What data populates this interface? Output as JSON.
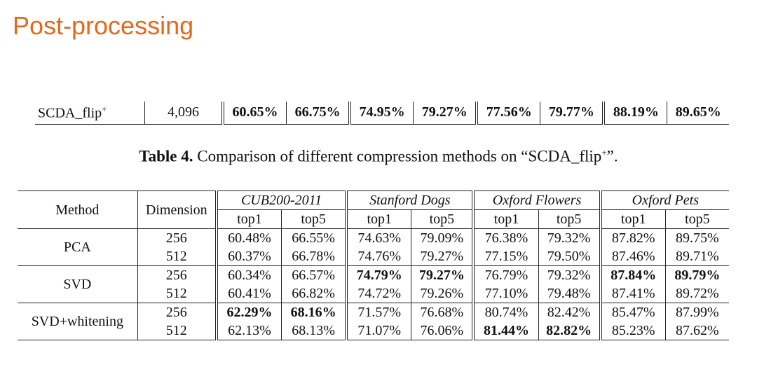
{
  "title": "Post-processing",
  "top_row": {
    "method": "SCDA_flip",
    "method_sup": "+",
    "dimension": "4,096",
    "values": [
      "60.65%",
      "66.75%",
      "74.95%",
      "79.27%",
      "77.56%",
      "79.77%",
      "88.19%",
      "89.65%"
    ]
  },
  "caption": {
    "label": "Table 4.",
    "text": "Comparison of different compression methods on “SCDA_flip",
    "sup": "+",
    "end": "”."
  },
  "table": {
    "method_header": "Method",
    "dimension_header": "Dimension",
    "datasets": [
      "CUB200-2011",
      "Stanford Dogs",
      "Oxford Flowers",
      "Oxford Pets"
    ],
    "subheaders": [
      "top1",
      "top5"
    ],
    "groups": [
      {
        "method": "PCA",
        "rows": [
          {
            "dimension": "256",
            "values": [
              "60.48%",
              "66.55%",
              "74.63%",
              "79.09%",
              "76.38%",
              "79.32%",
              "87.82%",
              "89.75%"
            ],
            "bold": []
          },
          {
            "dimension": "512",
            "values": [
              "60.37%",
              "66.78%",
              "74.76%",
              "79.27%",
              "77.15%",
              "79.50%",
              "87.46%",
              "89.71%"
            ],
            "bold": []
          }
        ]
      },
      {
        "method": "SVD",
        "rows": [
          {
            "dimension": "256",
            "values": [
              "60.34%",
              "66.57%",
              "74.79%",
              "79.27%",
              "76.79%",
              "79.32%",
              "87.84%",
              "89.79%"
            ],
            "bold": [
              2,
              3,
              6,
              7
            ]
          },
          {
            "dimension": "512",
            "values": [
              "60.41%",
              "66.82%",
              "74.72%",
              "79.26%",
              "77.10%",
              "79.48%",
              "87.41%",
              "89.72%"
            ],
            "bold": []
          }
        ]
      },
      {
        "method": "SVD+whitening",
        "rows": [
          {
            "dimension": "256",
            "values": [
              "62.29%",
              "68.16%",
              "71.57%",
              "76.68%",
              "80.74%",
              "82.42%",
              "85.47%",
              "87.99%"
            ],
            "bold": [
              0,
              1
            ]
          },
          {
            "dimension": "512",
            "values": [
              "62.13%",
              "68.13%",
              "71.07%",
              "76.06%",
              "81.44%",
              "82.82%",
              "85.23%",
              "87.62%"
            ],
            "bold": [
              4,
              5
            ]
          }
        ]
      }
    ]
  }
}
